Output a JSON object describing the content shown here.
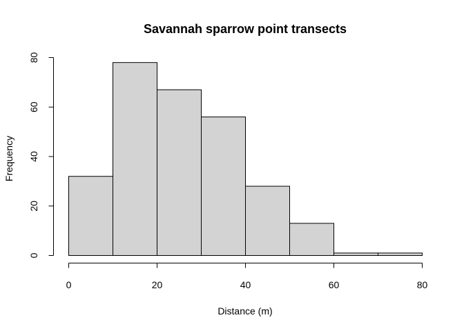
{
  "chart_data": {
    "type": "histogram",
    "title": "Savannah sparrow point transects",
    "xlabel": "Distance (m)",
    "ylabel": "Frequency",
    "bins": [
      {
        "from": 0,
        "to": 10,
        "count": 32
      },
      {
        "from": 10,
        "to": 20,
        "count": 78
      },
      {
        "from": 20,
        "to": 30,
        "count": 67
      },
      {
        "from": 30,
        "to": 40,
        "count": 56
      },
      {
        "from": 40,
        "to": 50,
        "count": 28
      },
      {
        "from": 50,
        "to": 60,
        "count": 13
      },
      {
        "from": 60,
        "to": 70,
        "count": 1
      },
      {
        "from": 70,
        "to": 80,
        "count": 1
      }
    ],
    "xlim": [
      0,
      80
    ],
    "ylim": [
      0,
      80
    ],
    "xticks": [
      "0",
      "20",
      "40",
      "60",
      "80"
    ],
    "yticks": [
      "0",
      "20",
      "40",
      "60",
      "80"
    ],
    "grid": false,
    "bar_fill": "#d3d3d3",
    "bar_stroke": "#000000"
  }
}
